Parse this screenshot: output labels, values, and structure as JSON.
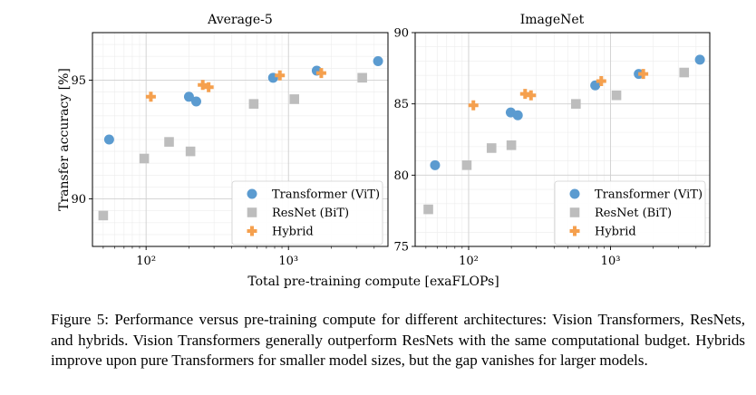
{
  "chart_data": [
    {
      "type": "scatter",
      "title": "Average-5",
      "ylabel": "Transfer accuracy [%]",
      "xscale": "log",
      "xlim": [
        42,
        5000
      ],
      "ylim": [
        88.0,
        97.0
      ],
      "yticks": [
        90,
        95
      ],
      "xticks": [
        100,
        1000
      ],
      "xtick_labels": [
        "10²",
        "10³"
      ],
      "grid": true,
      "legend": "lower-right",
      "series": [
        {
          "name": "Transformer (ViT)",
          "marker": "circle",
          "color": "#5b9bd0",
          "x": [
            55,
            200,
            225,
            780,
            1580,
            4260
          ],
          "y": [
            92.5,
            94.3,
            94.1,
            95.1,
            95.4,
            95.8
          ]
        },
        {
          "name": "ResNet (BiT)",
          "marker": "square",
          "color": "#bdbdbd",
          "x": [
            50,
            97,
            145,
            205,
            570,
            1100,
            3300
          ],
          "y": [
            89.3,
            91.7,
            92.4,
            92.0,
            94.0,
            94.2,
            95.1
          ]
        },
        {
          "name": "Hybrid",
          "marker": "plus",
          "color": "#f5a04e",
          "x": [
            108,
            250,
            275,
            870,
            1700
          ],
          "y": [
            94.3,
            94.8,
            94.7,
            95.2,
            95.3
          ]
        }
      ]
    },
    {
      "type": "scatter",
      "title": "ImageNet",
      "xscale": "log",
      "xlim": [
        42,
        5000
      ],
      "ylim": [
        75.0,
        90.0
      ],
      "yticks": [
        75,
        80,
        85,
        90
      ],
      "xticks": [
        100,
        1000
      ],
      "xtick_labels": [
        "10²",
        "10³"
      ],
      "grid": true,
      "legend": "lower-right",
      "series": [
        {
          "name": "Transformer (ViT)",
          "marker": "circle",
          "color": "#5b9bd0",
          "x": [
            58,
            198,
            222,
            780,
            1580,
            4260
          ],
          "y": [
            80.7,
            84.4,
            84.2,
            86.3,
            87.1,
            88.1
          ]
        },
        {
          "name": "ResNet (BiT)",
          "marker": "square",
          "color": "#bdbdbd",
          "x": [
            52,
            97,
            145,
            200,
            570,
            1100,
            3300
          ],
          "y": [
            77.6,
            80.7,
            81.9,
            82.1,
            85.0,
            85.6,
            87.2
          ]
        },
        {
          "name": "Hybrid",
          "marker": "plus",
          "color": "#f5a04e",
          "x": [
            108,
            250,
            275,
            860,
            1700
          ],
          "y": [
            84.9,
            85.7,
            85.6,
            86.6,
            87.1
          ]
        }
      ]
    }
  ],
  "shared_xlabel": "Total pre-training compute [exaFLOPs]",
  "caption": "Figure 5: Performance versus pre-training compute for different architectures: Vision Transformers, ResNets, and hybrids. Vision Transformers generally outperform ResNets with the same computational budget. Hybrids improve upon pure Transformers for smaller model sizes, but the gap vanishes for larger models."
}
